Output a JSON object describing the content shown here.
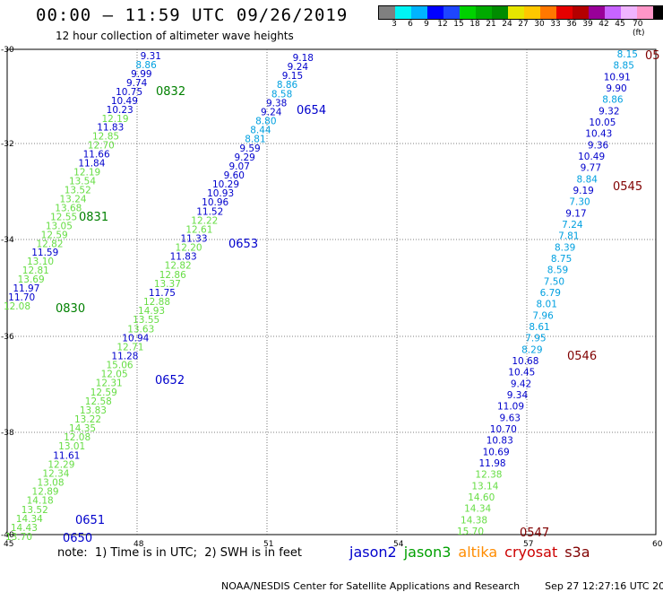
{
  "header": {
    "title": "00:00 – 11:59 UTC 09/26/2019",
    "subtitle": "12 hour collection of altimeter wave heights"
  },
  "colorbar": {
    "colors": [
      "#808080",
      "#00f5f5",
      "#00b4ff",
      "#0000ff",
      "#1e46ff",
      "#00d200",
      "#00aa00",
      "#008c00",
      "#e6e600",
      "#ffc800",
      "#ff7800",
      "#e60000",
      "#b40000",
      "#990099",
      "#c864ff",
      "#f0b4ff",
      "#ff96c8",
      "#000000"
    ],
    "labels": [
      "3",
      "6",
      "9",
      "12",
      "15",
      "18",
      "21",
      "24",
      "27",
      "30",
      "33",
      "36",
      "39",
      "42",
      "45",
      "70 (ft)"
    ]
  },
  "axes": {
    "lat_labels": [
      "-30",
      "-32",
      "-34",
      "-36",
      "-38",
      "-40"
    ],
    "lon_labels": [
      "45",
      "48",
      "51",
      "54",
      "57",
      "60"
    ]
  },
  "colors": {
    "light_green": "#66dd44",
    "blue": "#0000cc",
    "cyan": "#00a0e0",
    "dark_green": "#008000",
    "maroon": "#800000",
    "orange": "#ff8c00",
    "red": "#cc0000"
  },
  "tracks": [
    {
      "values": [
        {
          "t": "9.31",
          "c": "blue"
        },
        {
          "t": "8.86",
          "c": "cyan"
        },
        {
          "t": "9.99",
          "c": "blue"
        },
        {
          "t": "9.74",
          "c": "blue"
        },
        {
          "t": "10.75",
          "c": "blue"
        },
        {
          "t": "10.49",
          "c": "blue"
        },
        {
          "t": "10.23",
          "c": "blue"
        },
        {
          "t": "12.19",
          "c": "light_green"
        },
        {
          "t": "11.83",
          "c": "blue"
        },
        {
          "t": "12.85",
          "c": "light_green"
        },
        {
          "t": "12.70",
          "c": "light_green"
        },
        {
          "t": "11.66",
          "c": "blue"
        },
        {
          "t": "11.84",
          "c": "blue"
        },
        {
          "t": "12.19",
          "c": "light_green"
        },
        {
          "t": "13.54",
          "c": "light_green"
        },
        {
          "t": "13.52",
          "c": "light_green"
        },
        {
          "t": "13.24",
          "c": "light_green"
        },
        {
          "t": "13.68",
          "c": "light_green"
        },
        {
          "t": "12.55",
          "c": "light_green"
        },
        {
          "t": "13.05",
          "c": "light_green"
        },
        {
          "t": "12.59",
          "c": "light_green"
        },
        {
          "t": "12.82",
          "c": "light_green"
        },
        {
          "t": "11.59",
          "c": "blue"
        },
        {
          "t": "13.10",
          "c": "light_green"
        },
        {
          "t": "12.81",
          "c": "light_green"
        },
        {
          "t": "13.69",
          "c": "light_green"
        },
        {
          "t": "11.97",
          "c": "blue"
        },
        {
          "t": "11.70",
          "c": "blue"
        },
        {
          "t": "12.08",
          "c": "light_green"
        }
      ],
      "passes": [
        {
          "t": "0832",
          "c": "dark_green"
        },
        {
          "t": "0831",
          "c": "dark_green"
        },
        {
          "t": "0830",
          "c": "dark_green"
        }
      ]
    },
    {
      "values": [
        {
          "t": "9.18",
          "c": "blue"
        },
        {
          "t": "9.24",
          "c": "blue"
        },
        {
          "t": "9.15",
          "c": "blue"
        },
        {
          "t": "8.86",
          "c": "cyan"
        },
        {
          "t": "8.58",
          "c": "cyan"
        },
        {
          "t": "9.38",
          "c": "blue"
        },
        {
          "t": "9.24",
          "c": "blue"
        },
        {
          "t": "8.80",
          "c": "cyan"
        },
        {
          "t": "8.44",
          "c": "cyan"
        },
        {
          "t": "8.81",
          "c": "cyan"
        },
        {
          "t": "9.59",
          "c": "blue"
        },
        {
          "t": "9.29",
          "c": "blue"
        },
        {
          "t": "9.07",
          "c": "blue"
        },
        {
          "t": "9.60",
          "c": "blue"
        },
        {
          "t": "10.29",
          "c": "blue"
        },
        {
          "t": "10.93",
          "c": "blue"
        },
        {
          "t": "10.96",
          "c": "blue"
        },
        {
          "t": "11.52",
          "c": "blue"
        },
        {
          "t": "12.22",
          "c": "light_green"
        },
        {
          "t": "12.61",
          "c": "light_green"
        },
        {
          "t": "11.33",
          "c": "blue"
        },
        {
          "t": "12.20",
          "c": "light_green"
        },
        {
          "t": "11.83",
          "c": "blue"
        },
        {
          "t": "12.82",
          "c": "light_green"
        },
        {
          "t": "12.86",
          "c": "light_green"
        },
        {
          "t": "13.37",
          "c": "light_green"
        },
        {
          "t": "11.75",
          "c": "blue"
        },
        {
          "t": "12.88",
          "c": "light_green"
        },
        {
          "t": "14.93",
          "c": "light_green"
        },
        {
          "t": "13.55",
          "c": "light_green"
        },
        {
          "t": "13.63",
          "c": "light_green"
        },
        {
          "t": "10.94",
          "c": "blue"
        },
        {
          "t": "12.71",
          "c": "light_green"
        },
        {
          "t": "11.28",
          "c": "blue"
        },
        {
          "t": "15.06",
          "c": "light_green"
        },
        {
          "t": "12.05",
          "c": "light_green"
        },
        {
          "t": "12.31",
          "c": "light_green"
        },
        {
          "t": "12.59",
          "c": "light_green"
        },
        {
          "t": "12.58",
          "c": "light_green"
        },
        {
          "t": "13.83",
          "c": "light_green"
        },
        {
          "t": "13.22",
          "c": "light_green"
        },
        {
          "t": "14.35",
          "c": "light_green"
        },
        {
          "t": "12.08",
          "c": "light_green"
        },
        {
          "t": "13.01",
          "c": "light_green"
        },
        {
          "t": "11.61",
          "c": "blue"
        },
        {
          "t": "12.29",
          "c": "light_green"
        },
        {
          "t": "12.34",
          "c": "light_green"
        },
        {
          "t": "13.08",
          "c": "light_green"
        },
        {
          "t": "12.89",
          "c": "light_green"
        },
        {
          "t": "14.18",
          "c": "light_green"
        },
        {
          "t": "13.52",
          "c": "light_green"
        },
        {
          "t": "14.34",
          "c": "light_green"
        },
        {
          "t": "14.43",
          "c": "light_green"
        },
        {
          "t": "13.70",
          "c": "light_green"
        }
      ],
      "passes": [
        {
          "t": "0654",
          "c": "blue"
        },
        {
          "t": "0653",
          "c": "blue"
        },
        {
          "t": "0652",
          "c": "blue"
        },
        {
          "t": "0651",
          "c": "blue"
        },
        {
          "t": "0650",
          "c": "blue"
        }
      ]
    },
    {
      "values": [
        {
          "t": "8.15",
          "c": "cyan"
        },
        {
          "t": "8.85",
          "c": "cyan"
        },
        {
          "t": "10.91",
          "c": "blue"
        },
        {
          "t": "9.90",
          "c": "blue"
        },
        {
          "t": "8.86",
          "c": "cyan"
        },
        {
          "t": "9.32",
          "c": "blue"
        },
        {
          "t": "10.05",
          "c": "blue"
        },
        {
          "t": "10.43",
          "c": "blue"
        },
        {
          "t": "9.36",
          "c": "blue"
        },
        {
          "t": "10.49",
          "c": "blue"
        },
        {
          "t": "9.77",
          "c": "blue"
        },
        {
          "t": "8.84",
          "c": "cyan"
        },
        {
          "t": "9.19",
          "c": "blue"
        },
        {
          "t": "7.30",
          "c": "cyan"
        },
        {
          "t": "9.17",
          "c": "blue"
        },
        {
          "t": "7.24",
          "c": "cyan"
        },
        {
          "t": "7.81",
          "c": "cyan"
        },
        {
          "t": "8.39",
          "c": "cyan"
        },
        {
          "t": "8.75",
          "c": "cyan"
        },
        {
          "t": "8.59",
          "c": "cyan"
        },
        {
          "t": "7.50",
          "c": "cyan"
        },
        {
          "t": "6.79",
          "c": "cyan"
        },
        {
          "t": "8.01",
          "c": "cyan"
        },
        {
          "t": "7.96",
          "c": "cyan"
        },
        {
          "t": "8.61",
          "c": "cyan"
        },
        {
          "t": "7.95",
          "c": "cyan"
        },
        {
          "t": "8.29",
          "c": "cyan"
        },
        {
          "t": "10.68",
          "c": "blue"
        },
        {
          "t": "10.45",
          "c": "blue"
        },
        {
          "t": "9.42",
          "c": "blue"
        },
        {
          "t": "9.34",
          "c": "blue"
        },
        {
          "t": "11.09",
          "c": "blue"
        },
        {
          "t": "9.63",
          "c": "blue"
        },
        {
          "t": "10.70",
          "c": "blue"
        },
        {
          "t": "10.83",
          "c": "blue"
        },
        {
          "t": "10.69",
          "c": "blue"
        },
        {
          "t": "11.98",
          "c": "blue"
        },
        {
          "t": "12.38",
          "c": "light_green"
        },
        {
          "t": "13.14",
          "c": "light_green"
        },
        {
          "t": "14.60",
          "c": "light_green"
        },
        {
          "t": "14.34",
          "c": "light_green"
        },
        {
          "t": "14.38",
          "c": "light_green"
        },
        {
          "t": "15.70",
          "c": "light_green"
        }
      ],
      "passes": [
        {
          "t": "05",
          "c": "maroon"
        },
        {
          "t": "0545",
          "c": "maroon"
        },
        {
          "t": "0546",
          "c": "maroon"
        },
        {
          "t": "0547",
          "c": "maroon"
        }
      ]
    }
  ],
  "footer": {
    "note": "note:  1) Time is in UTC;  2) SWH is in feet",
    "satellites": [
      {
        "name": "jason2",
        "color": "#0000cc"
      },
      {
        "name": "jason3",
        "color": "#00a000"
      },
      {
        "name": "altika",
        "color": "#ff8c00"
      },
      {
        "name": "cryosat",
        "color": "#cc0000"
      },
      {
        "name": "s3a",
        "color": "#800000"
      }
    ],
    "credit": "NOAA/NESDIS Center for Satellite Applications and Research",
    "timestamp": "Sep 27 12:27:16 UTC 2019"
  }
}
